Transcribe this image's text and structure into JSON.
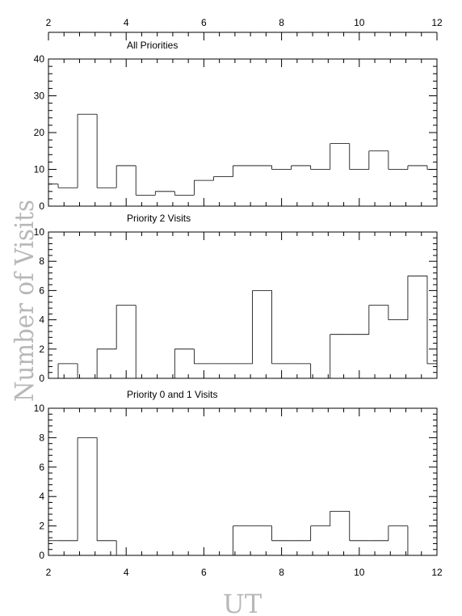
{
  "figure": {
    "xlabel": "UT",
    "ylabel": "Number of Visits",
    "top_axis_ticks": [
      "2",
      "4",
      "6",
      "8",
      "10",
      "12"
    ],
    "bottom_axis_ticks": [
      "2",
      "4",
      "6",
      "8",
      "10",
      "12"
    ]
  },
  "chart_data": [
    {
      "type": "histogram",
      "title": "All Priorities",
      "xlabel": "UT",
      "ylabel": "Number of Visits",
      "xlim": [
        2,
        12
      ],
      "ylim": [
        0,
        40
      ],
      "y_ticks": [
        "0",
        "10",
        "20",
        "30",
        "40"
      ],
      "bin_edges": [
        2,
        2.25,
        2.75,
        3.25,
        3.75,
        4.25,
        4.75,
        5.25,
        5.75,
        6.25,
        6.75,
        7.25,
        7.75,
        8.25,
        8.75,
        9.25,
        9.75,
        10.25,
        10.75,
        11.25,
        11.75,
        12
      ],
      "values": [
        6,
        5,
        25,
        5,
        11,
        3,
        4,
        3,
        7,
        8,
        11,
        11,
        10,
        11,
        10,
        17,
        10,
        15,
        10,
        11,
        10
      ]
    },
    {
      "type": "histogram",
      "title": "Priority 2 Visits",
      "xlabel": "UT",
      "ylabel": "Number of Visits",
      "xlim": [
        2,
        12
      ],
      "ylim": [
        0,
        10
      ],
      "y_ticks": [
        "0",
        "2",
        "4",
        "6",
        "8",
        "10"
      ],
      "bin_edges": [
        2,
        2.25,
        2.75,
        3.25,
        3.75,
        4.25,
        4.75,
        5.25,
        5.75,
        6.25,
        6.75,
        7.25,
        7.75,
        8.25,
        8.75,
        9.25,
        9.75,
        10.25,
        10.75,
        11.25,
        11.75,
        12
      ],
      "values": [
        0,
        1,
        0,
        2,
        5,
        0,
        0,
        2,
        1,
        1,
        1,
        6,
        1,
        1,
        0,
        3,
        3,
        5,
        4,
        7,
        1
      ]
    },
    {
      "type": "histogram",
      "title": "Priority 0 and 1 Visits",
      "xlabel": "UT",
      "ylabel": "Number of Visits",
      "xlim": [
        2,
        12
      ],
      "ylim": [
        0,
        10
      ],
      "y_ticks": [
        "0",
        "2",
        "4",
        "6",
        "8",
        "10"
      ],
      "bin_edges": [
        2,
        2.25,
        2.75,
        3.25,
        3.75,
        4.25,
        4.75,
        5.25,
        5.75,
        6.25,
        6.75,
        7.25,
        7.75,
        8.25,
        8.75,
        9.25,
        9.75,
        10.25,
        10.75,
        11.25,
        11.75,
        12
      ],
      "values": [
        1,
        1,
        8,
        1,
        0,
        0,
        0,
        0,
        0,
        0,
        2,
        2,
        1,
        1,
        2,
        3,
        1,
        1,
        2,
        0,
        0
      ]
    }
  ]
}
